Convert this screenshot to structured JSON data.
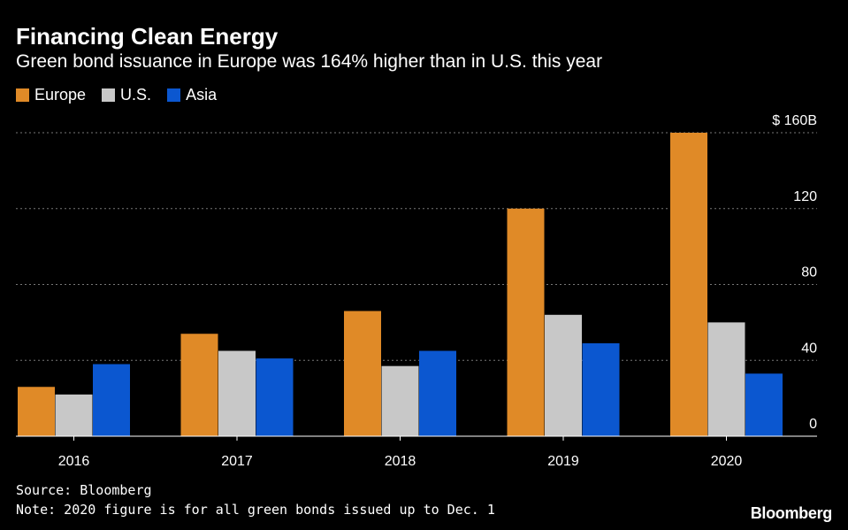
{
  "chart_data": {
    "type": "bar",
    "title": "Financing Clean Energy",
    "subtitle": "Green bond issuance in Europe was 164% higher than in U.S. this year",
    "categories": [
      "2016",
      "2017",
      "2018",
      "2019",
      "2020"
    ],
    "series": [
      {
        "name": "Europe",
        "color": "#e08a27",
        "values": [
          26,
          54,
          66,
          120,
          160
        ]
      },
      {
        "name": "U.S.",
        "color": "#c8c8c8",
        "values": [
          22,
          45,
          37,
          64,
          60
        ]
      },
      {
        "name": "Asia",
        "color": "#0b57d0",
        "values": [
          38,
          41,
          45,
          49,
          33
        ]
      }
    ],
    "y_ticks": [
      0,
      40,
      80,
      120,
      160
    ],
    "y_tick_labels": [
      "0",
      "40",
      "80",
      "120",
      "$ 160B"
    ],
    "ylim": [
      0,
      160
    ],
    "ylabel": "",
    "xlabel": "",
    "grid": true,
    "legend_position": "top-left"
  },
  "footer": {
    "source": "Source: Bloomberg",
    "note": "Note: 2020 figure is for all green bonds issued up to Dec. 1"
  },
  "brand": {
    "logo_text": "Bloomberg"
  },
  "colors": {
    "background": "#000000",
    "text": "#ffffff",
    "grid": "#777777",
    "axis": "#ffffff"
  }
}
